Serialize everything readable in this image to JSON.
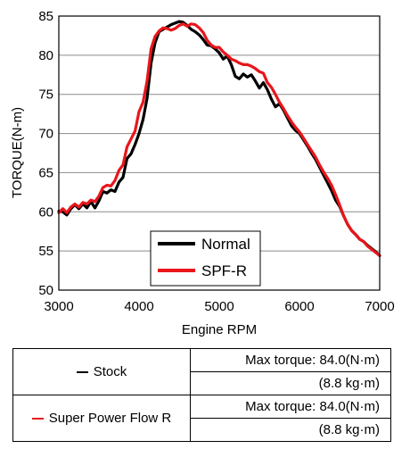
{
  "chart_data": {
    "type": "line",
    "xlabel": "Engine RPM",
    "ylabel": "TORQUE(N-m)",
    "xlim": [
      3000,
      7000
    ],
    "ylim": [
      50,
      85
    ],
    "x_ticks": [
      "3000",
      "4000",
      "5000",
      "6000",
      "7000"
    ],
    "y_ticks": [
      "50",
      "55",
      "60",
      "65",
      "70",
      "75",
      "80",
      "85"
    ],
    "grid": "horizontal",
    "legend_position": "bottom-center",
    "series": [
      {
        "name": "Normal",
        "color": "#000000",
        "points": [
          [
            3000,
            60.1
          ],
          [
            3050,
            60.0
          ],
          [
            3100,
            59.6
          ],
          [
            3150,
            60.4
          ],
          [
            3200,
            60.9
          ],
          [
            3250,
            60.4
          ],
          [
            3300,
            61.0
          ],
          [
            3350,
            60.5
          ],
          [
            3400,
            61.3
          ],
          [
            3450,
            60.5
          ],
          [
            3500,
            61.4
          ],
          [
            3550,
            62.6
          ],
          [
            3600,
            62.4
          ],
          [
            3650,
            62.8
          ],
          [
            3700,
            62.6
          ],
          [
            3750,
            63.8
          ],
          [
            3800,
            64.4
          ],
          [
            3850,
            66.8
          ],
          [
            3900,
            67.4
          ],
          [
            3950,
            68.6
          ],
          [
            4000,
            70.0
          ],
          [
            4050,
            71.8
          ],
          [
            4100,
            74.5
          ],
          [
            4150,
            79.0
          ],
          [
            4200,
            81.6
          ],
          [
            4250,
            83.0
          ],
          [
            4300,
            83.3
          ],
          [
            4350,
            83.6
          ],
          [
            4400,
            83.9
          ],
          [
            4450,
            84.1
          ],
          [
            4500,
            84.3
          ],
          [
            4550,
            84.2
          ],
          [
            4600,
            83.8
          ],
          [
            4650,
            83.3
          ],
          [
            4700,
            83.0
          ],
          [
            4750,
            82.6
          ],
          [
            4800,
            82.0
          ],
          [
            4850,
            81.3
          ],
          [
            4900,
            81.2
          ],
          [
            4950,
            80.8
          ],
          [
            5000,
            80.3
          ],
          [
            5050,
            79.5
          ],
          [
            5100,
            79.9
          ],
          [
            5150,
            78.8
          ],
          [
            5200,
            77.3
          ],
          [
            5250,
            77.0
          ],
          [
            5300,
            77.6
          ],
          [
            5350,
            77.2
          ],
          [
            5400,
            77.5
          ],
          [
            5450,
            76.7
          ],
          [
            5500,
            75.8
          ],
          [
            5550,
            76.5
          ],
          [
            5600,
            75.6
          ],
          [
            5650,
            74.4
          ],
          [
            5700,
            73.4
          ],
          [
            5750,
            73.8
          ],
          [
            5800,
            73.0
          ],
          [
            5850,
            72.0
          ],
          [
            5900,
            71.0
          ],
          [
            5950,
            70.4
          ],
          [
            6000,
            70.0
          ],
          [
            6050,
            69.2
          ],
          [
            6100,
            68.4
          ],
          [
            6150,
            67.5
          ],
          [
            6200,
            66.7
          ],
          [
            6250,
            65.7
          ],
          [
            6300,
            64.7
          ],
          [
            6350,
            63.7
          ],
          [
            6400,
            62.7
          ],
          [
            6450,
            61.5
          ],
          [
            6500,
            60.7
          ],
          [
            6550,
            59.5
          ],
          [
            6600,
            58.4
          ],
          [
            6650,
            57.6
          ],
          [
            6700,
            57.1
          ],
          [
            6750,
            56.5
          ],
          [
            6800,
            56.2
          ],
          [
            6850,
            55.7
          ],
          [
            6900,
            55.3
          ],
          [
            6950,
            54.9
          ],
          [
            7000,
            54.4
          ]
        ]
      },
      {
        "name": "SPF-R",
        "color": "#e8161b",
        "points": [
          [
            3000,
            59.9
          ],
          [
            3050,
            60.4
          ],
          [
            3100,
            59.9
          ],
          [
            3150,
            60.6
          ],
          [
            3200,
            61.0
          ],
          [
            3250,
            60.6
          ],
          [
            3300,
            61.2
          ],
          [
            3350,
            61.0
          ],
          [
            3400,
            61.5
          ],
          [
            3450,
            61.3
          ],
          [
            3500,
            62.0
          ],
          [
            3550,
            63.1
          ],
          [
            3600,
            63.4
          ],
          [
            3650,
            63.3
          ],
          [
            3700,
            64.0
          ],
          [
            3750,
            65.3
          ],
          [
            3800,
            66.0
          ],
          [
            3850,
            68.3
          ],
          [
            3900,
            69.3
          ],
          [
            3950,
            70.3
          ],
          [
            4000,
            72.8
          ],
          [
            4050,
            74.0
          ],
          [
            4100,
            76.7
          ],
          [
            4150,
            80.8
          ],
          [
            4200,
            82.4
          ],
          [
            4250,
            83.1
          ],
          [
            4300,
            83.5
          ],
          [
            4350,
            83.4
          ],
          [
            4400,
            83.2
          ],
          [
            4450,
            83.4
          ],
          [
            4500,
            83.8
          ],
          [
            4550,
            84.0
          ],
          [
            4600,
            83.7
          ],
          [
            4650,
            84.0
          ],
          [
            4700,
            83.9
          ],
          [
            4750,
            83.5
          ],
          [
            4800,
            82.9
          ],
          [
            4850,
            81.9
          ],
          [
            4900,
            81.3
          ],
          [
            4950,
            81.0
          ],
          [
            5000,
            81.0
          ],
          [
            5050,
            80.4
          ],
          [
            5100,
            80.0
          ],
          [
            5150,
            79.5
          ],
          [
            5200,
            79.3
          ],
          [
            5250,
            79.0
          ],
          [
            5300,
            78.8
          ],
          [
            5350,
            78.8
          ],
          [
            5400,
            78.6
          ],
          [
            5450,
            78.3
          ],
          [
            5500,
            77.9
          ],
          [
            5550,
            77.7
          ],
          [
            5600,
            76.5
          ],
          [
            5650,
            75.9
          ],
          [
            5700,
            75.0
          ],
          [
            5750,
            74.0
          ],
          [
            5800,
            73.2
          ],
          [
            5850,
            72.3
          ],
          [
            5900,
            71.5
          ],
          [
            5950,
            70.8
          ],
          [
            6000,
            70.2
          ],
          [
            6050,
            69.4
          ],
          [
            6100,
            68.6
          ],
          [
            6150,
            67.8
          ],
          [
            6200,
            67.0
          ],
          [
            6250,
            66.0
          ],
          [
            6300,
            65.1
          ],
          [
            6350,
            64.3
          ],
          [
            6400,
            63.4
          ],
          [
            6450,
            62.2
          ],
          [
            6500,
            60.9
          ],
          [
            6550,
            59.5
          ],
          [
            6600,
            58.4
          ],
          [
            6650,
            57.6
          ],
          [
            6700,
            57.1
          ],
          [
            6750,
            56.5
          ],
          [
            6800,
            56.2
          ],
          [
            6850,
            55.6
          ],
          [
            6900,
            55.2
          ],
          [
            6950,
            54.8
          ],
          [
            7000,
            54.4
          ]
        ]
      }
    ]
  },
  "table": {
    "rows": [
      {
        "name": "Stock",
        "marker_color": "#000000",
        "max_torque": "Max torque: 84.0(N·m)",
        "kgm": "(8.8 kg·m)"
      },
      {
        "name": "Super Power Flow R",
        "marker_color": "#e8161b",
        "max_torque": "Max torque: 84.0(N·m)",
        "kgm": "(8.8 kg·m)"
      }
    ]
  }
}
